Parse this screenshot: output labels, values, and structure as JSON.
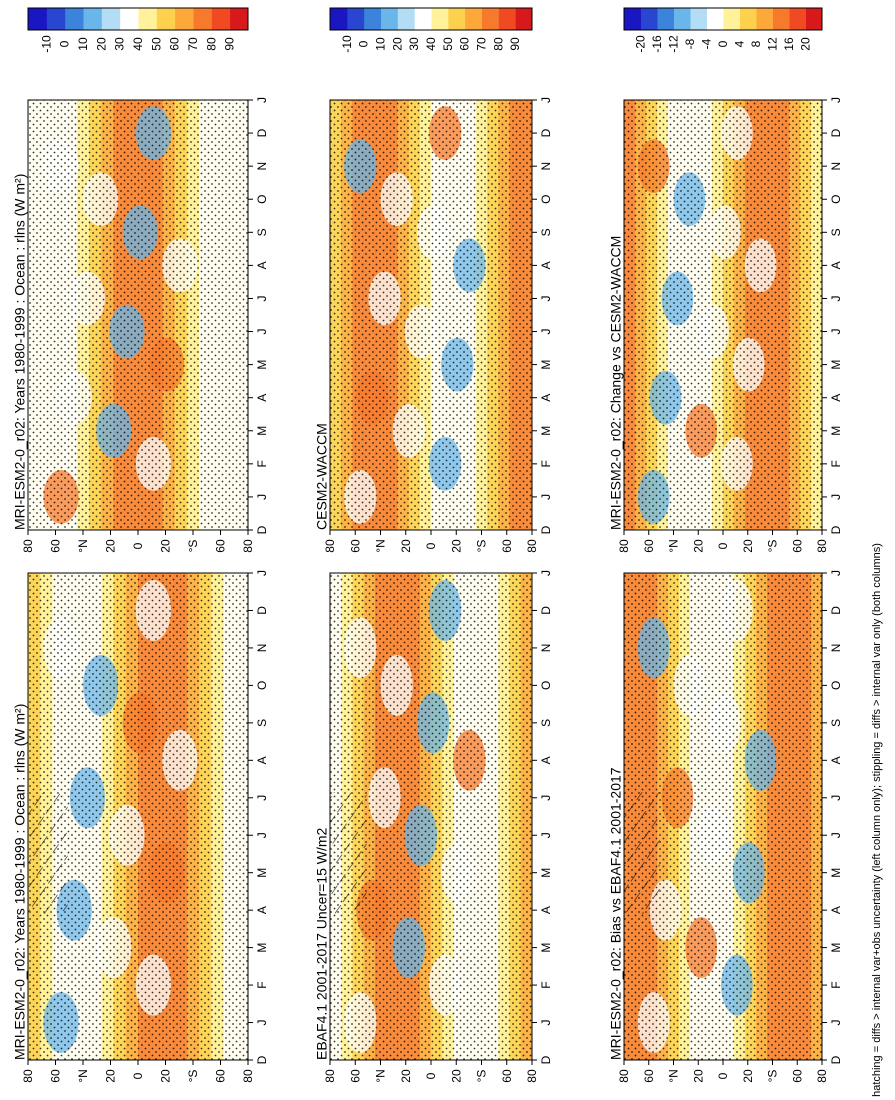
{
  "footnote": "hatching = diffs > internal var+obs uncertainty (left column only); stippling = diffs > internal var only (both columns)",
  "chart_data": [
    {
      "type": "heatmap",
      "title": "MRI-ESM2-0_r02: Years 1980-1999 : Ocean : rlns (W m²)",
      "months": [
        "D",
        "J",
        "F",
        "M",
        "A",
        "M",
        "J",
        "J",
        "A",
        "S",
        "O",
        "N",
        "D",
        "J"
      ],
      "lat_ticks": [
        "80",
        "60",
        "°N",
        "20",
        "0",
        "20",
        "°S",
        "60",
        "80"
      ],
      "colorbar": [
        "90",
        "80",
        "70",
        "60",
        "50",
        "40",
        "30",
        "20",
        "10",
        "0",
        "-10"
      ],
      "colors": [
        "#d7191c",
        "#ef4a21",
        "#f7792c",
        "#fca83a",
        "#fdd04d",
        "#fff29a",
        "#ffffff",
        "#b3ddf5",
        "#6ab5ea",
        "#3c83db",
        "#2846d0",
        "#1a17c2"
      ],
      "row": 0,
      "col": 0
    },
    {
      "type": "heatmap",
      "title": "MRI-ESM2-0_r02: Years 1980-1999 : Ocean : rlns (W m²)",
      "months": [
        "D",
        "J",
        "F",
        "M",
        "A",
        "M",
        "J",
        "J",
        "A",
        "S",
        "O",
        "N",
        "D",
        "J"
      ],
      "lat_ticks": [
        "80",
        "60",
        "°N",
        "20",
        "0",
        "20",
        "°S",
        "60",
        "80"
      ],
      "colorbar": [
        "90",
        "80",
        "70",
        "60",
        "50",
        "40",
        "30",
        "20",
        "10",
        "0",
        "-10"
      ],
      "colors": [
        "#d7191c",
        "#ef4a21",
        "#f7792c",
        "#fca83a",
        "#fdd04d",
        "#fff29a",
        "#ffffff",
        "#b3ddf5",
        "#6ab5ea",
        "#3c83db",
        "#2846d0",
        "#1a17c2"
      ],
      "row": 0,
      "col": 1
    },
    {
      "type": "heatmap",
      "title": "EBAF4.1 2001-2017 Uncer=15 W/m2",
      "months": [
        "D",
        "J",
        "F",
        "M",
        "A",
        "M",
        "J",
        "J",
        "A",
        "S",
        "O",
        "N",
        "D",
        "J"
      ],
      "lat_ticks": [
        "80",
        "60",
        "°N",
        "20",
        "0",
        "20",
        "°S",
        "60",
        "80"
      ],
      "colorbar": [
        "90",
        "80",
        "70",
        "60",
        "50",
        "40",
        "30",
        "20",
        "10",
        "0",
        "-10"
      ],
      "colors": [
        "#d7191c",
        "#ef4a21",
        "#f7792c",
        "#fca83a",
        "#fdd04d",
        "#fff29a",
        "#ffffff",
        "#b3ddf5",
        "#6ab5ea",
        "#3c83db",
        "#2846d0",
        "#1a17c2"
      ],
      "row": 1,
      "col": 0
    },
    {
      "type": "heatmap",
      "title": "CESM2-WACCM",
      "months": [
        "D",
        "J",
        "F",
        "M",
        "A",
        "M",
        "J",
        "J",
        "A",
        "S",
        "O",
        "N",
        "D",
        "J"
      ],
      "lat_ticks": [
        "80",
        "60",
        "°N",
        "20",
        "0",
        "20",
        "°S",
        "60",
        "80"
      ],
      "colorbar": [
        "90",
        "80",
        "70",
        "60",
        "50",
        "40",
        "30",
        "20",
        "10",
        "0",
        "-10"
      ],
      "colors": [
        "#d7191c",
        "#ef4a21",
        "#f7792c",
        "#fca83a",
        "#fdd04d",
        "#fff29a",
        "#ffffff",
        "#b3ddf5",
        "#6ab5ea",
        "#3c83db",
        "#2846d0",
        "#1a17c2"
      ],
      "row": 1,
      "col": 1
    },
    {
      "type": "heatmap",
      "title": "MRI-ESM2-0_r02: Bias vs EBAF4.1 2001-2017",
      "months": [
        "D",
        "J",
        "F",
        "M",
        "A",
        "M",
        "J",
        "J",
        "A",
        "S",
        "O",
        "N",
        "D",
        "J"
      ],
      "lat_ticks": [
        "80",
        "60",
        "°N",
        "20",
        "0",
        "20",
        "°S",
        "60",
        "80"
      ],
      "colorbar": [
        "20",
        "16",
        "12",
        "8",
        "4",
        "0",
        "-4",
        "-8",
        "-12",
        "-16",
        "-20"
      ],
      "colors": [
        "#d7191c",
        "#ef4a21",
        "#f7792c",
        "#fca83a",
        "#fdd04d",
        "#fff29a",
        "#ffffff",
        "#b3ddf5",
        "#6ab5ea",
        "#3c83db",
        "#2846d0",
        "#1a17c2"
      ],
      "row": 2,
      "col": 0
    },
    {
      "type": "heatmap",
      "title": "MRI-ESM2-0_r02: Change vs CESM2-WACCM",
      "months": [
        "D",
        "J",
        "F",
        "M",
        "A",
        "M",
        "J",
        "J",
        "A",
        "S",
        "O",
        "N",
        "D",
        "J"
      ],
      "lat_ticks": [
        "80",
        "60",
        "°N",
        "20",
        "0",
        "20",
        "°S",
        "60",
        "80"
      ],
      "colorbar": [
        "20",
        "16",
        "12",
        "8",
        "4",
        "0",
        "-4",
        "-8",
        "-12",
        "-16",
        "-20"
      ],
      "colors": [
        "#d7191c",
        "#ef4a21",
        "#f7792c",
        "#fca83a",
        "#fdd04d",
        "#fff29a",
        "#ffffff",
        "#b3ddf5",
        "#6ab5ea",
        "#3c83db",
        "#2846d0",
        "#1a17c2"
      ],
      "row": 2,
      "col": 1
    }
  ]
}
